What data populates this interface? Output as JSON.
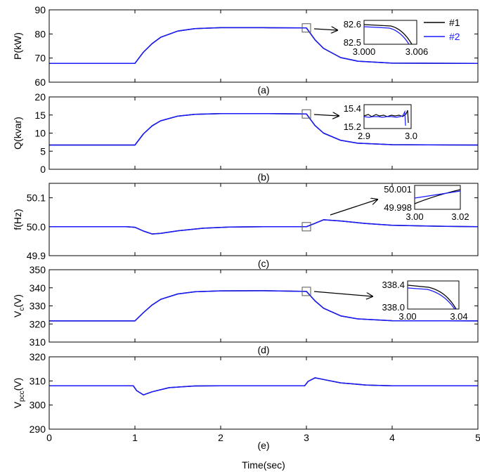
{
  "legend": [
    {
      "label": "#1",
      "color": "#000000"
    },
    {
      "label": "#2",
      "color": "#1a1aff"
    }
  ],
  "xaxis": {
    "label": "Time(sec)",
    "ticks": [
      "0",
      "1",
      "2",
      "3",
      "4",
      "5"
    ],
    "range": [
      0,
      5
    ]
  },
  "chart_data": [
    {
      "type": "line",
      "caption": "(a)",
      "ylabel": "P(kW)",
      "ylim": [
        60,
        90
      ],
      "yticks": [
        "60",
        "70",
        "80",
        "90"
      ],
      "series": [
        {
          "name": "#1",
          "x": [
            0,
            1.0,
            1.1,
            1.2,
            1.3,
            1.5,
            1.7,
            2.0,
            2.5,
            3.0,
            3.1,
            3.2,
            3.4,
            3.6,
            4.0,
            5.0
          ],
          "y": [
            67.8,
            67.8,
            72.5,
            76.0,
            78.6,
            81.2,
            82.2,
            82.6,
            82.6,
            82.5,
            77.6,
            74.0,
            70.2,
            68.7,
            67.9,
            67.8
          ]
        },
        {
          "name": "#2",
          "x": [
            0,
            1.0,
            1.1,
            1.2,
            1.3,
            1.5,
            1.7,
            2.0,
            2.5,
            3.0,
            3.1,
            3.2,
            3.4,
            3.6,
            4.0,
            5.0
          ],
          "y": [
            67.8,
            67.8,
            72.5,
            76.0,
            78.6,
            81.2,
            82.2,
            82.6,
            82.6,
            82.5,
            77.6,
            74.0,
            70.2,
            68.7,
            67.9,
            67.8
          ]
        }
      ],
      "marker_at": {
        "x": 3.0,
        "y": 82.5
      },
      "inset": {
        "xticks": [
          "3.000",
          "3.006"
        ],
        "yticks": [
          "82.6",
          "82.5"
        ]
      }
    },
    {
      "type": "line",
      "caption": "(b)",
      "ylabel": "Q(kvar)",
      "ylim": [
        0,
        20
      ],
      "yticks": [
        "0",
        "5",
        "10",
        "15",
        "20"
      ],
      "series": [
        {
          "name": "#1",
          "x": [
            0,
            1.0,
            1.1,
            1.2,
            1.3,
            1.5,
            1.7,
            2.0,
            2.5,
            3.0,
            3.1,
            3.2,
            3.4,
            3.6,
            4.0,
            5.0
          ],
          "y": [
            6.7,
            6.7,
            9.8,
            12.0,
            13.4,
            14.7,
            15.2,
            15.4,
            15.4,
            15.3,
            12.1,
            10.0,
            8.0,
            7.2,
            6.8,
            6.7
          ]
        },
        {
          "name": "#2",
          "x": [
            0,
            1.0,
            1.1,
            1.2,
            1.3,
            1.5,
            1.7,
            2.0,
            2.5,
            3.0,
            3.1,
            3.2,
            3.4,
            3.6,
            4.0,
            5.0
          ],
          "y": [
            6.7,
            6.7,
            9.8,
            12.0,
            13.4,
            14.7,
            15.2,
            15.4,
            15.4,
            15.3,
            12.1,
            10.0,
            8.0,
            7.2,
            6.8,
            6.7
          ]
        }
      ],
      "marker_at": {
        "x": 3.0,
        "y": 15.3
      },
      "inset": {
        "xticks": [
          "2.9",
          "3.0"
        ],
        "yticks": [
          "15.4",
          "15.2"
        ]
      }
    },
    {
      "type": "line",
      "caption": "(c)",
      "ylabel": "f(Hz)",
      "ylim": [
        49.9,
        50.15
      ],
      "yticks": [
        "49.9",
        "50.0",
        "50.1"
      ],
      "series": [
        {
          "name": "#1",
          "x": [
            0,
            0.9,
            1.0,
            1.1,
            1.2,
            1.3,
            1.5,
            1.8,
            2.1,
            2.5,
            3.0,
            3.1,
            3.2,
            3.4,
            3.7,
            4.0,
            4.5,
            5.0
          ],
          "y": [
            50.0,
            50.0,
            49.998,
            49.985,
            49.975,
            49.977,
            49.986,
            49.995,
            49.999,
            50.0,
            50.0,
            50.012,
            50.024,
            50.02,
            50.011,
            50.005,
            50.002,
            50.0
          ]
        },
        {
          "name": "#2",
          "x": [
            0,
            0.9,
            1.0,
            1.1,
            1.2,
            1.3,
            1.5,
            1.8,
            2.1,
            2.5,
            3.0,
            3.1,
            3.2,
            3.4,
            3.7,
            4.0,
            4.5,
            5.0
          ],
          "y": [
            50.0,
            50.0,
            49.998,
            49.985,
            49.975,
            49.977,
            49.986,
            49.995,
            49.999,
            50.0,
            50.0,
            50.012,
            50.024,
            50.02,
            50.011,
            50.005,
            50.002,
            50.0
          ]
        }
      ],
      "marker_at": {
        "x": 3.0,
        "y": 50.0
      },
      "inset": {
        "xticks": [
          "3.00",
          "3.02"
        ],
        "yticks": [
          "50.001",
          "49.998"
        ]
      }
    },
    {
      "type": "line",
      "caption": "(d)",
      "ylabel": "V",
      "ylabel_sub": "c",
      "ylabel_unit": "(V)",
      "ylim": [
        310,
        350
      ],
      "yticks": [
        "310",
        "320",
        "330",
        "340",
        "350"
      ],
      "series": [
        {
          "name": "#1",
          "x": [
            0,
            1.0,
            1.1,
            1.2,
            1.3,
            1.5,
            1.7,
            2.0,
            2.5,
            3.0,
            3.1,
            3.2,
            3.4,
            3.6,
            4.0,
            5.0
          ],
          "y": [
            321.7,
            321.7,
            326.3,
            330.5,
            333.6,
            336.6,
            337.8,
            338.3,
            338.4,
            338.0,
            332.8,
            328.7,
            324.5,
            322.8,
            321.8,
            321.7
          ]
        },
        {
          "name": "#2",
          "x": [
            0,
            1.0,
            1.1,
            1.2,
            1.3,
            1.5,
            1.7,
            2.0,
            2.5,
            3.0,
            3.1,
            3.2,
            3.4,
            3.6,
            4.0,
            5.0
          ],
          "y": [
            321.7,
            321.7,
            326.3,
            330.5,
            333.6,
            336.6,
            337.8,
            338.3,
            338.4,
            338.0,
            332.8,
            328.7,
            324.5,
            322.8,
            321.8,
            321.7
          ]
        }
      ],
      "marker_at": {
        "x": 3.0,
        "y": 338.0
      },
      "inset": {
        "xticks": [
          "3.00",
          "3.04"
        ],
        "yticks": [
          "338.4",
          "338.0"
        ]
      }
    },
    {
      "type": "line",
      "caption": "(e)",
      "ylabel": "V",
      "ylabel_sub": "pcc",
      "ylabel_unit": "(V)",
      "ylim": [
        290,
        320
      ],
      "yticks": [
        "290",
        "300",
        "310",
        "320"
      ],
      "series": [
        {
          "name": "#1",
          "x": [
            0,
            0.98,
            1.02,
            1.1,
            1.2,
            1.4,
            1.7,
            2.0,
            2.5,
            2.98,
            3.02,
            3.1,
            3.2,
            3.4,
            3.7,
            4.0,
            5.0
          ],
          "y": [
            308.0,
            308.0,
            306.0,
            304.2,
            305.5,
            307.2,
            307.9,
            308.0,
            308.0,
            308.0,
            309.8,
            311.3,
            310.6,
            309.2,
            308.3,
            308.0,
            308.0
          ]
        },
        {
          "name": "#2",
          "x": [
            0,
            0.98,
            1.02,
            1.1,
            1.2,
            1.4,
            1.7,
            2.0,
            2.5,
            2.98,
            3.02,
            3.1,
            3.2,
            3.4,
            3.7,
            4.0,
            5.0
          ],
          "y": [
            308.0,
            308.0,
            306.0,
            304.2,
            305.5,
            307.2,
            307.9,
            308.0,
            308.0,
            308.0,
            309.8,
            311.3,
            310.6,
            309.2,
            308.3,
            308.0,
            308.0
          ]
        }
      ]
    }
  ]
}
